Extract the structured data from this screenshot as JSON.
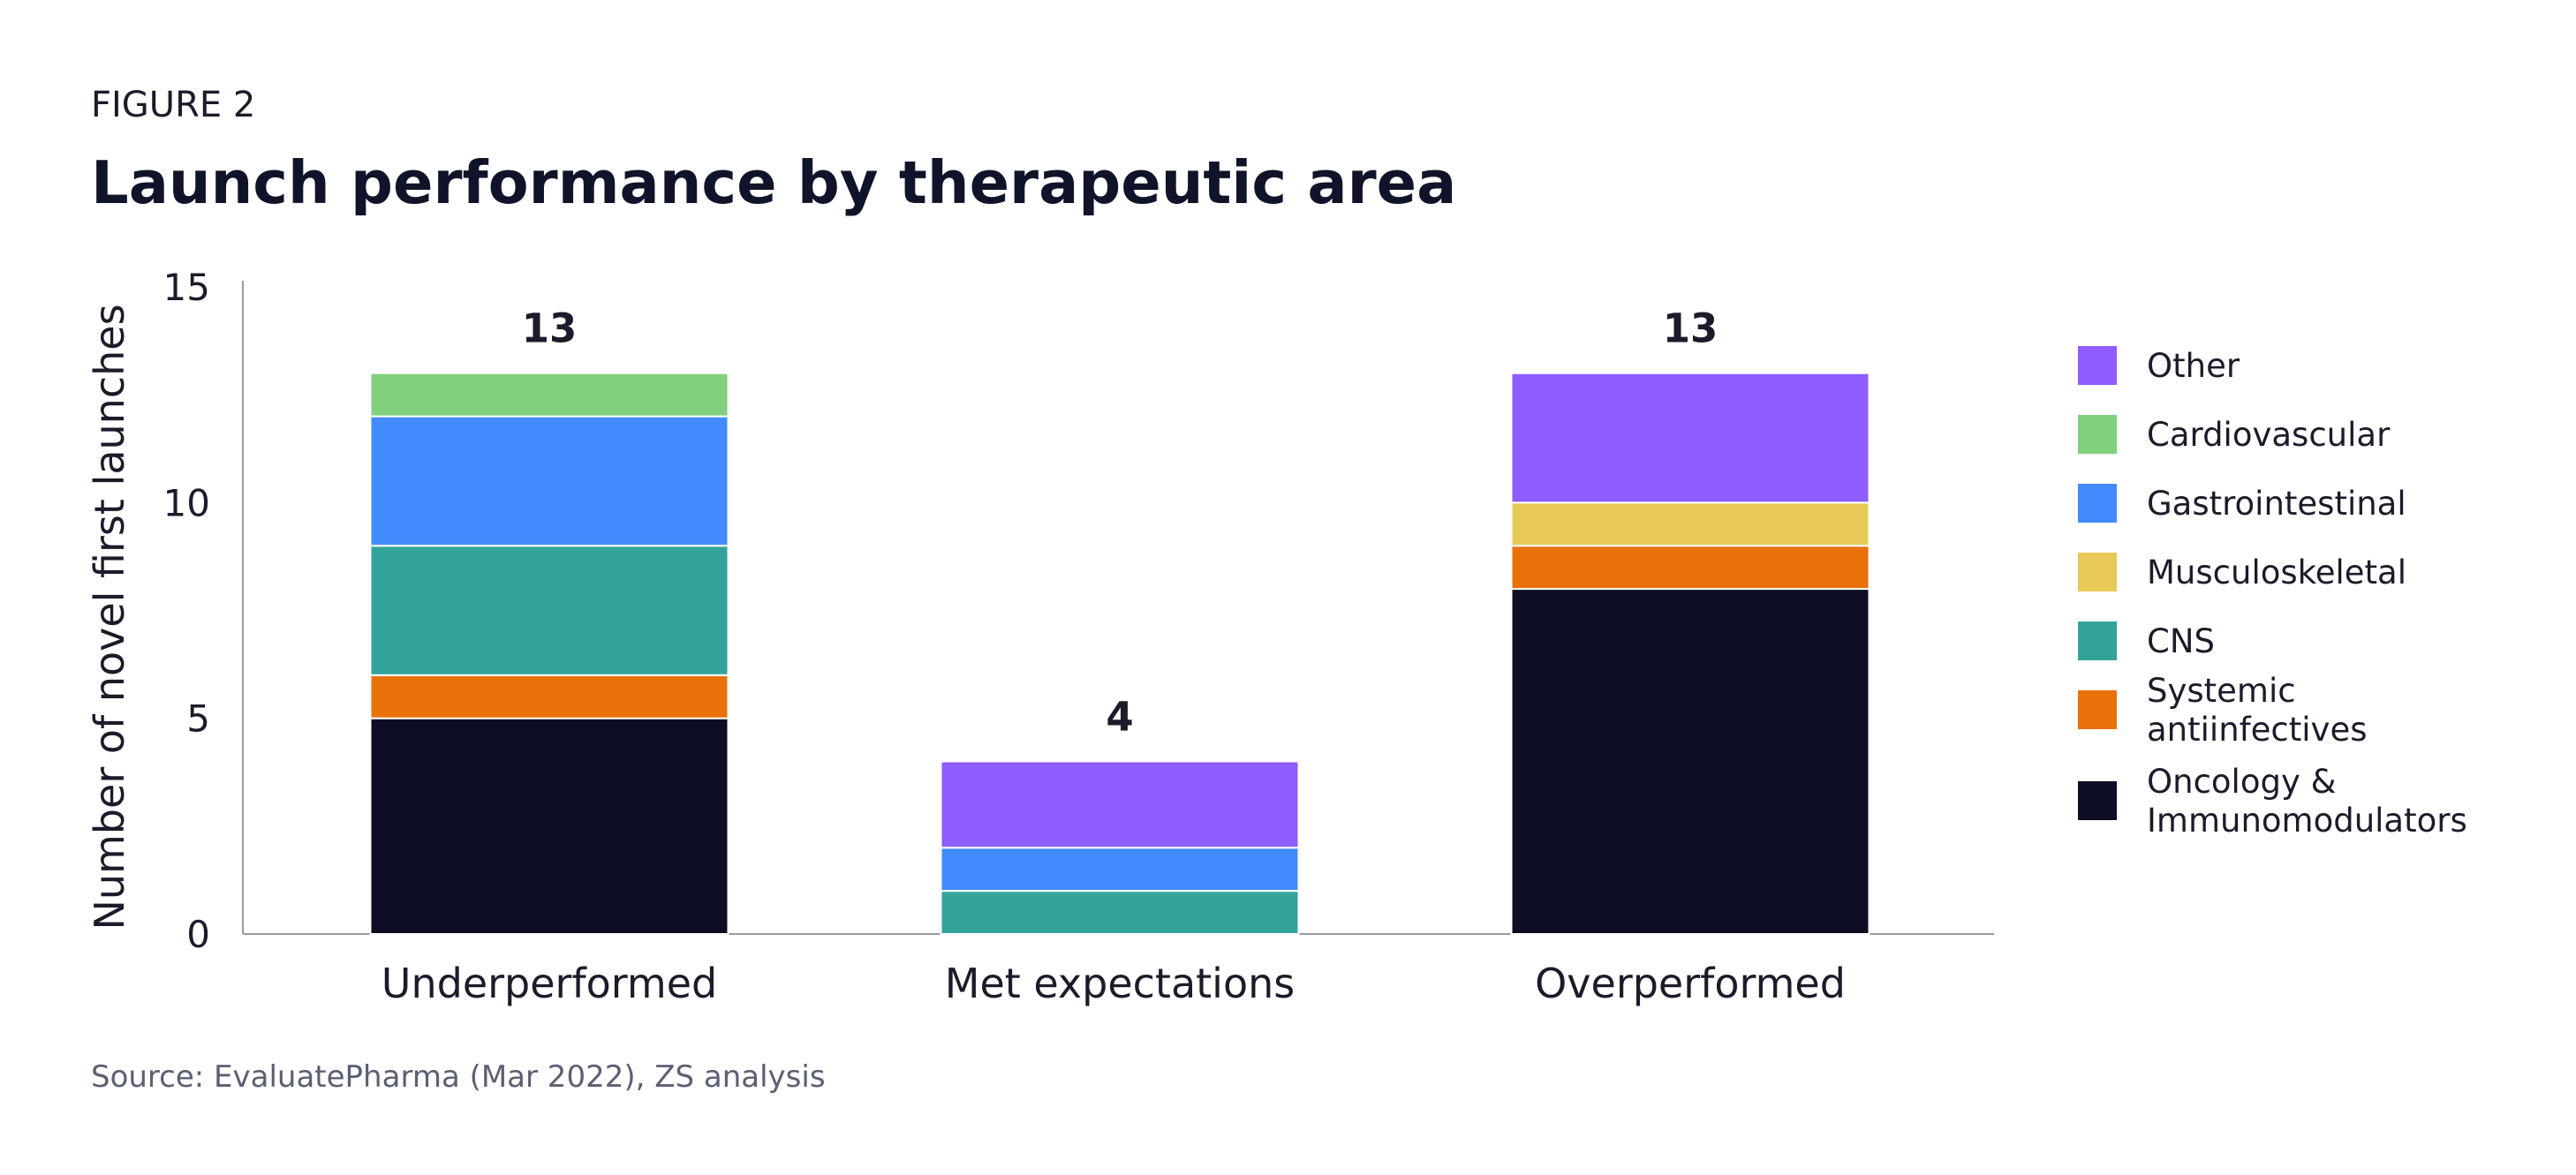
{
  "figure_label": "FIGURE 2",
  "title": "Launch performance by therapeutic area",
  "source": "Source: EvaluatePharma (Mar 2022), ZS analysis",
  "chart_data": {
    "type": "bar",
    "stacked": true,
    "categories": [
      "Underperformed",
      "Met expectations",
      "Overperformed"
    ],
    "totals": [
      "13",
      "4",
      "13"
    ],
    "ylabel": "Number of novel first launches",
    "ylim": [
      0,
      15
    ],
    "yticks": [
      0,
      5,
      10,
      15
    ],
    "grid": false,
    "legend_position": "right",
    "series": [
      {
        "name": "Oncology & Immunomodulators",
        "color": "#0d0d24",
        "values": [
          5,
          0,
          8
        ]
      },
      {
        "name": "Systemic antiinfectives",
        "color": "#e8710a",
        "values": [
          1,
          0,
          1
        ]
      },
      {
        "name": "CNS",
        "color": "#34a39a",
        "values": [
          3,
          1,
          0
        ]
      },
      {
        "name": "Musculoskeletal",
        "color": "#e8c857",
        "values": [
          0,
          0,
          1
        ]
      },
      {
        "name": "Gastrointestinal",
        "color": "#418bff",
        "values": [
          3,
          1,
          0
        ]
      },
      {
        "name": "Cardiovascular",
        "color": "#80d07e",
        "values": [
          1,
          0,
          0
        ]
      },
      {
        "name": "Other",
        "color": "#8f5cff",
        "values": [
          0,
          2,
          3
        ]
      }
    ],
    "legend": [
      {
        "lines": [
          "Other"
        ],
        "color": "#8f5cff"
      },
      {
        "lines": [
          "Cardiovascular"
        ],
        "color": "#80d07e"
      },
      {
        "lines": [
          "Gastrointestinal"
        ],
        "color": "#418bff"
      },
      {
        "lines": [
          "Musculoskeletal"
        ],
        "color": "#e8c857"
      },
      {
        "lines": [
          "CNS"
        ],
        "color": "#34a39a"
      },
      {
        "lines": [
          "Systemic",
          "antiinfectives"
        ],
        "color": "#e8710a"
      },
      {
        "lines": [
          "Oncology &",
          "Immunomodulators"
        ],
        "color": "#0d0d24"
      }
    ]
  }
}
